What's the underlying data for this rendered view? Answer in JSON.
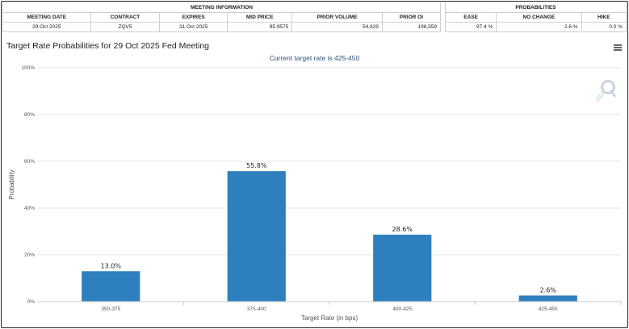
{
  "meeting_info": {
    "group_label": "MEETING INFORMATION",
    "headers": [
      "MEETING DATE",
      "CONTRACT",
      "EXPIRES",
      "MID PRICE",
      "PRIOR VOLUME",
      "PRIOR OI"
    ],
    "values": [
      "29 Oct 2025",
      "ZQV5",
      "31 Oct 2025",
      "95.9575",
      "54,829",
      "198,559"
    ]
  },
  "probabilities": {
    "group_label": "PROBABILITIES",
    "headers": [
      "EASE",
      "NO CHANGE",
      "HIKE"
    ],
    "values": [
      "97.4 %",
      "2.6 %",
      "0.0 %"
    ]
  },
  "colors": {
    "bar": "#2e7fbd",
    "grid": "#e6e6e6",
    "subtitle": "#2b4f7a"
  },
  "icons": {
    "menu": "hamburger-menu-icon",
    "watermark": "q-logo-icon"
  },
  "chart_data": {
    "type": "bar",
    "title": "Target Rate Probabilities for 29 Oct 2025 Fed Meeting",
    "subtitle": "Current target rate is 425-450",
    "xlabel": "Target Rate (in bps)",
    "ylabel": "Probability",
    "categories": [
      "350-375",
      "375-400",
      "400-425",
      "425-450"
    ],
    "values": [
      13.0,
      55.8,
      28.6,
      2.6
    ],
    "data_labels": [
      "13.0%",
      "55.8%",
      "28.6%",
      "2.6%"
    ],
    "ylim": [
      0,
      100
    ],
    "yticks": [
      0,
      20,
      40,
      60,
      80,
      100
    ],
    "ytick_labels": [
      "0%",
      "20%",
      "40%",
      "60%",
      "80%",
      "100%"
    ],
    "grid": true
  }
}
